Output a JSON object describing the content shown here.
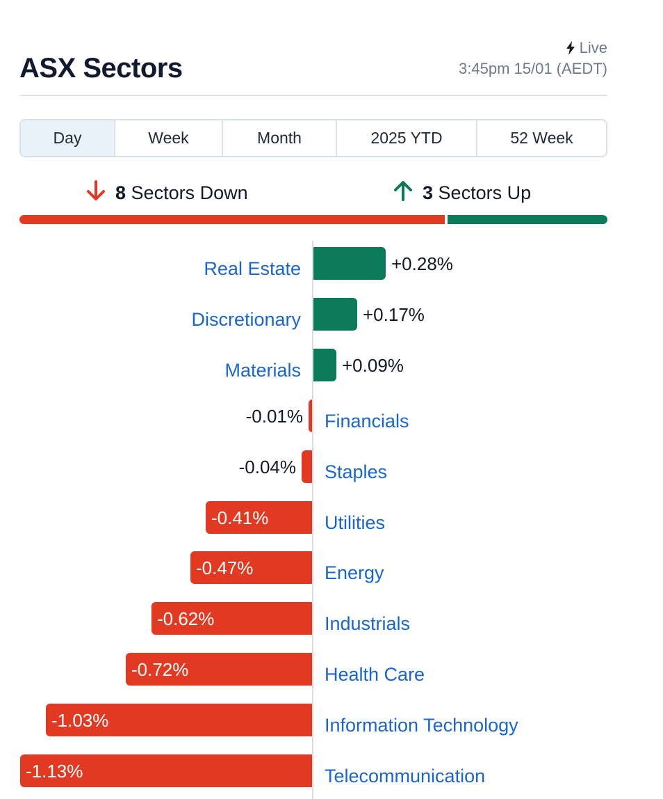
{
  "header": {
    "title": "ASX Sectors",
    "live_label": "Live",
    "live_icon": "lightning-bolt-icon",
    "timestamp": "3:45pm 15/01 (AEDT)"
  },
  "tabs": [
    {
      "label": "Day",
      "active": true
    },
    {
      "label": "Week",
      "active": false
    },
    {
      "label": "Month",
      "active": false
    },
    {
      "label": "2025 YTD",
      "active": false
    },
    {
      "label": "52 Week",
      "active": false
    }
  ],
  "summary": {
    "down_count": "8",
    "down_label": "Sectors Down",
    "up_count": "3",
    "up_label": "Sectors Up"
  },
  "colors": {
    "up": "#0b7a58",
    "down": "#e23a22",
    "link": "#1a66d0",
    "tab_active_bg": "#e9f1fb"
  },
  "chart_data": {
    "type": "bar",
    "categories": [
      "Real Estate",
      "Discretionary",
      "Materials",
      "Financials",
      "Staples",
      "Utilities",
      "Energy",
      "Industrials",
      "Health Care",
      "Information Technology",
      "Telecommunication"
    ],
    "values": [
      0.28,
      0.17,
      0.09,
      -0.01,
      -0.04,
      -0.41,
      -0.47,
      -0.62,
      -0.72,
      -1.03,
      -1.13
    ],
    "value_labels": [
      "+0.28%",
      "+0.17%",
      "+0.09%",
      "-0.01%",
      "-0.04%",
      "-0.41%",
      "-0.47%",
      "-0.62%",
      "-0.72%",
      "-1.03%",
      "-1.13%"
    ]
  }
}
